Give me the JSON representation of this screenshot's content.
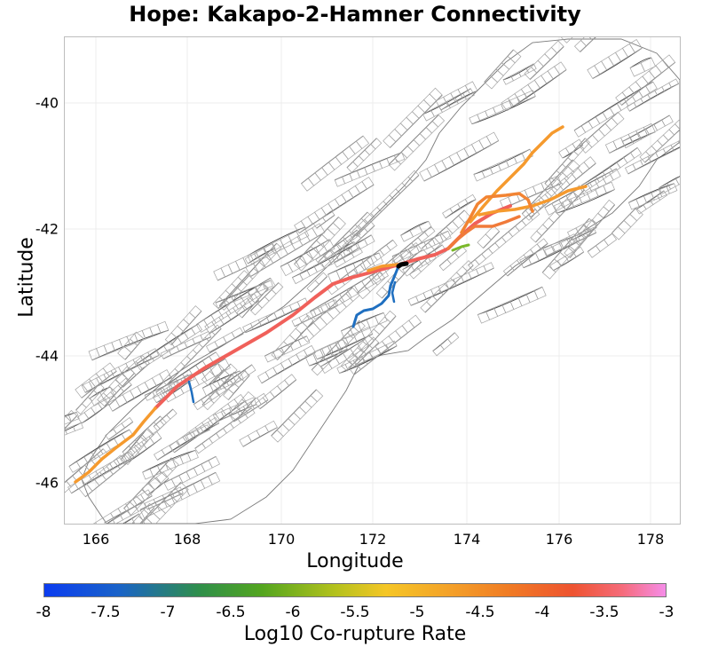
{
  "title": "Hope: Kakapo-2-Hamner Connectivity",
  "xlabel": "Longitude",
  "ylabel": "Latitude",
  "xticks": [
    "166",
    "168",
    "170",
    "172",
    "174",
    "176",
    "178"
  ],
  "yticks": [
    "-40",
    "-42",
    "-44",
    "-46"
  ],
  "xrange": [
    165.3,
    178.7
  ],
  "yrange": [
    -46.7,
    -39.0
  ],
  "colorbar": {
    "title": "Log10 Co-rupture Rate",
    "ticks": [
      "-8",
      "-7.5",
      "-7",
      "-6.5",
      "-6",
      "-5.5",
      "-5",
      "-4.5",
      "-4",
      "-3.5",
      "-3"
    ],
    "range": [
      -8,
      -3
    ]
  },
  "colors": {
    "red": "#f0605a",
    "orange": "#f59a2e",
    "blue": "#1f6fc0",
    "green": "#7ab82a",
    "black": "#000000",
    "fault_gray": "#555555",
    "box_gray": "#9a9a9a"
  }
}
